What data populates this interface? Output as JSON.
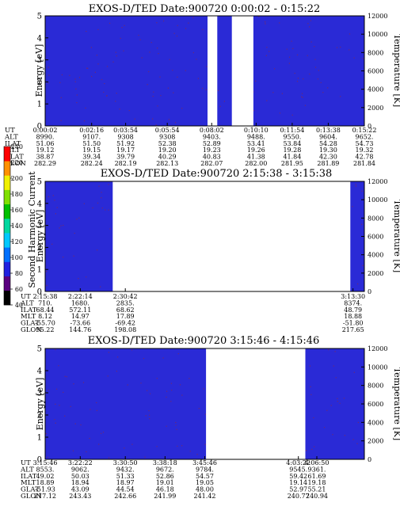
{
  "colors": {
    "background_level": "#2a2ad6",
    "frame": "#000000",
    "high_level": "#ffffff",
    "dark_level": "#000000",
    "speckle": "#8a2a4a"
  },
  "colorbar": {
    "label": "Second Harmonic Current",
    "ticks": [
      "40",
      "60",
      "80",
      "100",
      "120",
      "140",
      "160",
      "180",
      "200",
      "220",
      "240"
    ],
    "colors": [
      "#000000",
      "#5a0080",
      "#2020e0",
      "#0070ff",
      "#00c8ff",
      "#00d8a0",
      "#00c000",
      "#80e000",
      "#f0f000",
      "#ff9000",
      "#ff0000"
    ]
  },
  "chart_data": [
    {
      "type": "heatmap",
      "title": "EXOS-D/TED   Date:900720   0:00:02 - 0:15:22",
      "ylabel": "Energy [eV]",
      "ylabel_right": "Temperature [K]",
      "ylim": [
        0,
        5
      ],
      "ylim_right": [
        0,
        12000
      ],
      "yticks": [
        "0",
        "1",
        "2",
        "3",
        "4",
        "5"
      ],
      "yticks_right": [
        "0",
        "2000",
        "4000",
        "6000",
        "8000",
        "10000",
        "12000"
      ],
      "xlim_seconds": [
        2,
        922
      ],
      "gaps_seconds": [
        [
          470,
          498
        ],
        [
          540,
          602
        ]
      ],
      "ephemeris": {
        "labels": [
          "UT",
          "ALT",
          "ILAT",
          "MLT",
          "GLAT",
          "GLON"
        ],
        "columns": [
          {
            "t": 2,
            "values": [
              "0:00:02",
              "8990.",
              "51.06",
              "19.12",
              "38.87",
              "282.29"
            ]
          },
          {
            "t": 136,
            "values": [
              "0:02:16",
              "9107.",
              "51.50",
              "19.15",
              "39.34",
              "282.24"
            ]
          },
          {
            "t": 234,
            "values": [
              "0:03:54",
              "9308",
              "51.92",
              "19.17",
              "39.79",
              "282.19"
            ]
          },
          {
            "t": 354,
            "values": [
              "0:05:54",
              "9308",
              "52.38",
              "19.20",
              "40.29",
              "282.13"
            ]
          },
          {
            "t": 482,
            "values": [
              "0:08:02",
              "9403.",
              "52.89",
              "19.23",
              "40.83",
              "282.07"
            ]
          },
          {
            "t": 610,
            "values": [
              "0:10:10",
              "9488.",
              "53.41",
              "19.26",
              "41.38",
              "282.00"
            ]
          },
          {
            "t": 714,
            "values": [
              "0:11:54",
              "9550.",
              "53.84",
              "19.28",
              "41.84",
              "281.95"
            ]
          },
          {
            "t": 818,
            "values": [
              "0:13:38",
              "9604.",
              "54.28",
              "19.30",
              "42.30",
              "281.89"
            ]
          },
          {
            "t": 922,
            "values": [
              "0:15:22",
              "9652.",
              "54.73",
              "19.32",
              "42.78",
              "281.84"
            ]
          }
        ]
      }
    },
    {
      "type": "heatmap",
      "title": "EXOS-D/TED   Date:900720   2:15:38 - 3:15:38",
      "ylabel": "Energy [eV]",
      "ylabel_right": "Temperature [K]",
      "ylim": [
        0,
        5
      ],
      "ylim_right": [
        0,
        12000
      ],
      "yticks": [
        "0",
        "1",
        "2",
        "3",
        "4",
        "5"
      ],
      "yticks_right": [
        "0",
        "2000",
        "4000",
        "6000",
        "8000",
        "10000",
        "12000"
      ],
      "xlim_seconds": [
        8138,
        11738
      ],
      "gaps_seconds": [
        [
          8900,
          11580
        ]
      ],
      "ephemeris": {
        "labels": [
          "UT",
          "ALT",
          "ILAT",
          "MLT",
          "GLAT",
          "GLON"
        ],
        "columns": [
          {
            "t": 8138,
            "values": [
              "2:15:38",
              "710.",
              "68.44",
              "8.12",
              "-55.70",
              "95.22"
            ]
          },
          {
            "t": 8534,
            "values": [
              "2:22:14",
              "1680.",
              "572.11",
              "14.97",
              "-73.66",
              "144.76"
            ]
          },
          {
            "t": 9042,
            "values": [
              "2:30:42",
              "2835.",
              "68.62",
              "17.89",
              "-69.42",
              "198.08"
            ]
          },
          {
            "t": 11610,
            "values": [
              "3:13:30",
              "8374.",
              "48.79",
              "18.88",
              "-51.80",
              "217.65"
            ]
          }
        ]
      }
    },
    {
      "type": "heatmap",
      "title": "EXOS-D/TED   Date:900720   3:15:46 - 4:15:46",
      "ylabel": "Energy [eV]",
      "ylabel_right": "Temperature [K]",
      "ylim": [
        0,
        5
      ],
      "ylim_right": [
        0,
        12000
      ],
      "yticks": [
        "0",
        "1",
        "2",
        "3",
        "4",
        "5"
      ],
      "yticks_right": [
        "0",
        "2000",
        "4000",
        "6000",
        "8000",
        "10000",
        "12000"
      ],
      "xlim_seconds": [
        11746,
        15346
      ],
      "gaps_seconds": [
        [
          13560,
          14680
        ]
      ],
      "ephemeris": {
        "labels": [
          "UT",
          "ALT",
          "ILAT",
          "MLT",
          "GLAT",
          "GLON"
        ],
        "columns": [
          {
            "t": 11746,
            "values": [
              "3:15:46",
              "8553.",
              "49.02",
              "18.89",
              "-51.93",
              "217.12"
            ]
          },
          {
            "t": 12142,
            "values": [
              "3:22:22",
              "9062.",
              "50.03",
              "18.94",
              "43.09",
              "243.43"
            ]
          },
          {
            "t": 12650,
            "values": [
              "3:30:50",
              "9432.",
              "51.33",
              "18.97",
              "44.54",
              "242.66"
            ]
          },
          {
            "t": 13098,
            "values": [
              "3:38:18",
              "9672.",
              "52.86",
              "19.01",
              "46.18",
              "241.99"
            ]
          },
          {
            "t": 13546,
            "values": [
              "3:45:46",
              "9784.",
              "54.57",
              "19.05",
              "48.00",
              "241.42"
            ]
          },
          {
            "t": 14602,
            "values": [
              "4:03:22",
              "9545.",
              "59.42",
              "19.14",
              "52.97",
              "240.77"
            ]
          },
          {
            "t": 14810,
            "values": [
              "4:06:50",
              "9361.",
              "61.69",
              "19.18",
              "55.21",
              "240.94"
            ]
          }
        ]
      }
    }
  ]
}
